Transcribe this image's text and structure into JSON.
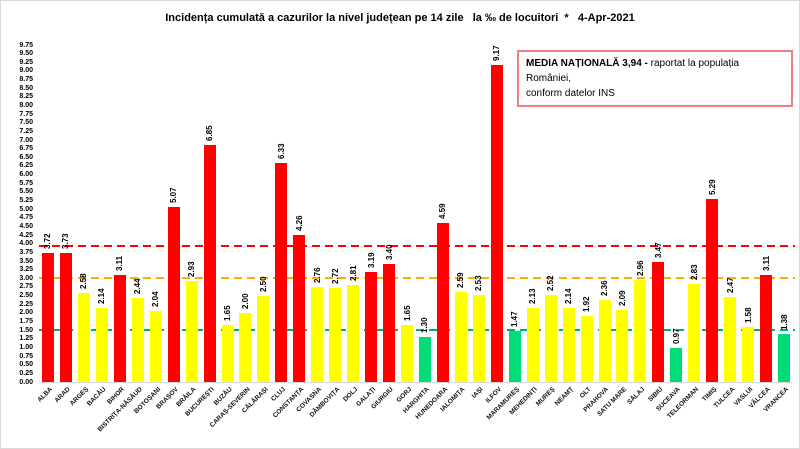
{
  "title": "Incidența cumulată a cazurilor la nivel județean pe 14 zile   la ‰ de locuitori  *   4-Apr-2021",
  "legend": {
    "bold_text": "MEDIA NAȚIONALĂ 3,94 - ",
    "text_rest": "raportat la populația României,",
    "text_line2": "conform datelor INS"
  },
  "chart_data": {
    "type": "bar",
    "title": "Incidența cumulată a cazurilor la nivel județean pe 14 zile la ‰ de locuitori * 4-Apr-2021",
    "xlabel": "",
    "ylabel": "",
    "ylim": [
      0,
      9.75
    ],
    "ytick_step": 0.25,
    "grid": false,
    "legend_position": "none",
    "national_average": 3.94,
    "categories": [
      "ALBA",
      "ARAD",
      "ARGEȘ",
      "BACĂU",
      "BIHOR",
      "BISTRIȚA-NĂSĂUD",
      "BOTOȘANI",
      "BRAȘOV",
      "BRĂILA",
      "BUCUREȘTI",
      "BUZĂU",
      "CARAȘ-SEVERIN",
      "CĂLĂRAȘI",
      "CLUJ",
      "CONSTANȚA",
      "COVASNA",
      "DÂMBOVIȚA",
      "DOLJ",
      "GALAȚI",
      "GIURGIU",
      "GORJ",
      "HARGHITA",
      "HUNEDOARA",
      "IALOMIȚA",
      "IAȘI",
      "ILFOV",
      "MARAMUREȘ",
      "MEHEDINȚI",
      "MUREȘ",
      "NEAMȚ",
      "OLT",
      "PRAHOVA",
      "SATU MARE",
      "SĂLAJ",
      "SIBIU",
      "SUCEAVA",
      "TELEORMAN",
      "TIMIȘ",
      "TULCEA",
      "VASLUI",
      "VÂLCEA",
      "VRANCEA"
    ],
    "values": [
      3.72,
      3.73,
      2.58,
      2.14,
      3.11,
      2.44,
      2.04,
      5.07,
      2.93,
      6.85,
      1.65,
      2.0,
      2.5,
      6.33,
      4.26,
      2.76,
      2.72,
      2.81,
      3.19,
      3.4,
      1.65,
      1.3,
      4.59,
      2.59,
      2.53,
      9.17,
      1.47,
      2.13,
      2.52,
      2.14,
      1.92,
      2.36,
      2.09,
      2.96,
      3.47,
      0.97,
      2.83,
      5.29,
      2.47,
      1.58,
      3.11,
      1.38
    ],
    "colors": [
      "red",
      "red",
      "yellow",
      "yellow",
      "red",
      "yellow",
      "yellow",
      "red",
      "yellow",
      "red",
      "yellow",
      "yellow",
      "yellow",
      "red",
      "red",
      "yellow",
      "yellow",
      "yellow",
      "red",
      "red",
      "yellow",
      "green",
      "red",
      "yellow",
      "yellow",
      "red",
      "green",
      "yellow",
      "yellow",
      "yellow",
      "yellow",
      "yellow",
      "yellow",
      "yellow",
      "red",
      "green",
      "yellow",
      "red",
      "yellow",
      "yellow",
      "red",
      "green"
    ],
    "bar_colors": {
      "red": "#ff0000",
      "yellow": "#ffff00",
      "green": "#00dc78"
    },
    "thresholds": [
      {
        "name": "national-average",
        "value": 3.94,
        "color": "#ff0000"
      },
      {
        "name": "red-zone",
        "value": 3.0,
        "color": "#ffae00"
      },
      {
        "name": "yellow-zone",
        "value": 1.5,
        "color": "#00b266"
      }
    ]
  }
}
